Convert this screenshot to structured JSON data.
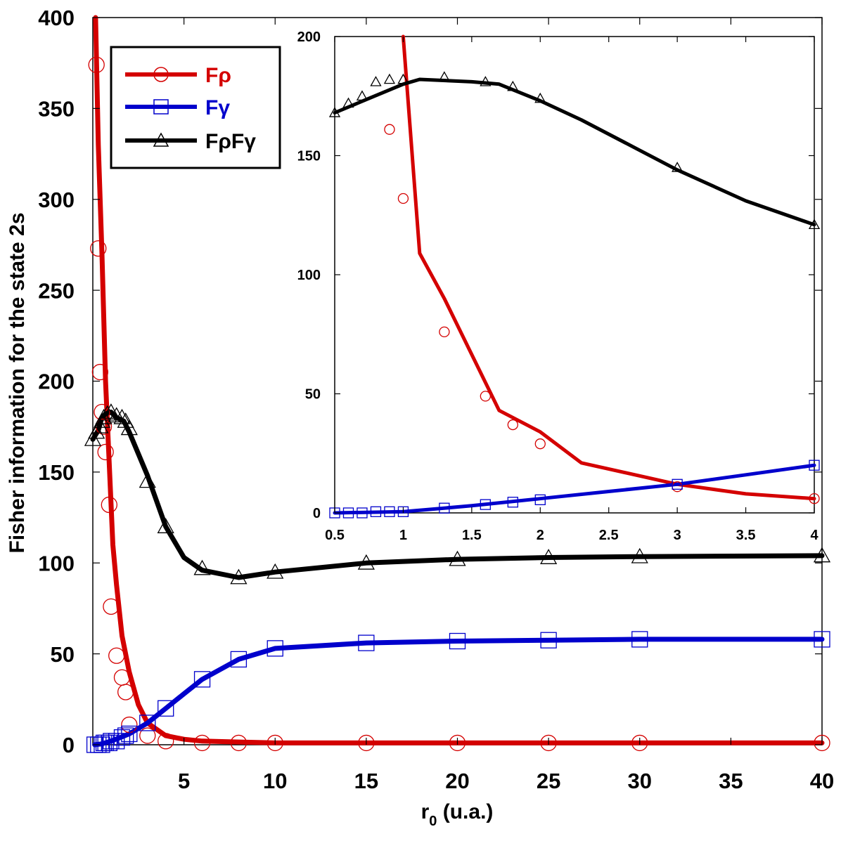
{
  "chart_data": [
    {
      "type": "line",
      "panel": "main",
      "xlabel": "r",
      "xlabel_sub": "0",
      "xlabel_suffix": " (u.a.)",
      "ylabel": "Fisher information for the state 2s",
      "xlim": [
        0,
        40
      ],
      "ylim": [
        0,
        400
      ],
      "xticks": [
        5,
        10,
        15,
        20,
        25,
        30,
        35,
        40
      ],
      "yticks": [
        0,
        50,
        100,
        150,
        200,
        250,
        300,
        350,
        400
      ],
      "grid": false,
      "legend_position": "top-left",
      "series": [
        {
          "name": "Fρ",
          "color": "#d40000",
          "marker": "circle",
          "line": {
            "x": [
              0.15,
              0.3,
              0.5,
              0.7,
              0.9,
              1.1,
              1.3,
              1.6,
              2.0,
              2.5,
              3.0,
              4.0,
              5.0,
              6.0,
              8.0,
              10.0,
              15.0,
              20.0,
              25.0,
              30.0,
              40.0
            ],
            "y": [
              400,
              330,
              270,
              200,
              155,
              110,
              88,
              60,
              40,
              22,
              12,
              5,
              3,
              2,
              1.5,
              1,
              1,
              1,
              1,
              1,
              1
            ]
          },
          "points": {
            "x": [
              0.2,
              0.3,
              0.4,
              0.5,
              0.6,
              0.7,
              0.9,
              1.0,
              1.3,
              1.6,
              1.8,
              2.0,
              3.0,
              4.0,
              6.0,
              8.0,
              10.0,
              15.0,
              20.0,
              25.0,
              30.0,
              40.0
            ],
            "y": [
              374,
              273,
              205,
              183,
              175,
              161,
              132,
              76,
              49,
              37,
              29,
              11,
              5,
              2,
              1,
              1,
              1,
              1,
              1,
              1,
              1,
              1
            ]
          }
        },
        {
          "name": "Fγ",
          "color": "#0000cc",
          "marker": "square",
          "line": {
            "x": [
              0.1,
              0.5,
              1.0,
              1.5,
              2.0,
              3.0,
              4.0,
              5.0,
              6.0,
              8.0,
              10.0,
              15.0,
              20.0,
              25.0,
              30.0,
              40.0
            ],
            "y": [
              0,
              0.5,
              2,
              4,
              6,
              12,
              20,
              28,
              36,
              47,
              53,
              56,
              57,
              57.5,
              58,
              58
            ]
          },
          "points": {
            "x": [
              0.1,
              0.3,
              0.5,
              0.6,
              0.7,
              0.9,
              1.0,
              1.3,
              1.6,
              1.8,
              2.0,
              3.0,
              4.0,
              6.0,
              8.0,
              10.0,
              15.0,
              20.0,
              25.0,
              30.0,
              40.0
            ],
            "y": [
              0,
              0,
              0,
              1,
              1,
              1,
              2,
              2,
              4,
              5,
              6,
              12,
              20,
              36,
              47,
              53,
              56,
              57,
              57.5,
              58,
              58
            ]
          }
        },
        {
          "name": "FρFγ",
          "color": "#000000",
          "marker": "triangle",
          "line": {
            "x": [
              0.0,
              0.3,
              0.5,
              0.7,
              1.0,
              1.3,
              1.7,
              2.0,
              3.0,
              4.0,
              5.0,
              6.0,
              8.0,
              10.0,
              15.0,
              20.0,
              25.0,
              30.0,
              40.0
            ],
            "y": [
              168,
              173,
              180,
              182,
              183,
              180,
              178,
              172,
              148,
              120,
              103,
              96,
              92,
              95,
              100,
              102,
              103,
              103.5,
              104
            ]
          },
          "points": {
            "x": [
              0.0,
              0.2,
              0.4,
              0.5,
              0.6,
              0.8,
              1.0,
              1.3,
              1.6,
              1.8,
              2.0,
              3.0,
              4.0,
              6.0,
              8.0,
              10.0,
              15.0,
              20.0,
              25.0,
              30.0,
              40.0
            ],
            "y": [
              168,
              172,
              175,
              178,
              180,
              182,
              183,
              181,
              180,
              178,
              174,
              145,
              120,
              97,
              92,
              95,
              100,
              102,
              103,
              103.5,
              104
            ]
          }
        }
      ]
    },
    {
      "type": "line",
      "panel": "inset",
      "xlim": [
        0.5,
        4
      ],
      "ylim": [
        0,
        200
      ],
      "xticks": [
        0.5,
        1,
        1.5,
        2,
        2.5,
        3,
        3.5,
        4
      ],
      "xtick_labels": [
        "0.5",
        "1",
        "1.5",
        "2",
        "2.5",
        "3",
        "3.5",
        "4"
      ],
      "yticks": [
        0,
        50,
        100,
        150,
        200
      ],
      "grid": false,
      "series": [
        {
          "name": "Fρ",
          "color": "#d40000",
          "marker": "circle",
          "line": {
            "x": [
              1.0,
              1.12,
              1.3,
              1.7,
              2.0,
              2.3,
              3.0,
              3.5,
              4.0
            ],
            "y": [
              200,
              109,
              90,
              43,
              34,
              21,
              12,
              8,
              6
            ]
          },
          "points": {
            "x": [
              0.9,
              1.0,
              1.3,
              1.6,
              1.8,
              2.0,
              3.0,
              4.0
            ],
            "y": [
              161,
              132,
              76,
              49,
              37,
              29,
              11,
              6
            ]
          }
        },
        {
          "name": "Fγ",
          "color": "#0000cc",
          "marker": "square",
          "line": {
            "x": [
              0.5,
              1.0,
              1.5,
              2.0,
              2.5,
              3.0,
              3.5,
              4.0
            ],
            "y": [
              0,
              0.5,
              3,
              6,
              9,
              12,
              16,
              20
            ]
          },
          "points": {
            "x": [
              0.5,
              0.6,
              0.7,
              0.8,
              0.9,
              1.0,
              1.3,
              1.6,
              1.8,
              2.0,
              3.0,
              4.0
            ],
            "y": [
              0,
              0,
              0,
              0.5,
              0.5,
              0.5,
              2,
              3.5,
              4.5,
              5.5,
              12,
              20
            ]
          }
        },
        {
          "name": "FρFγ",
          "color": "#000000",
          "marker": "triangle",
          "line": {
            "x": [
              0.5,
              0.75,
              1.0,
              1.12,
              1.5,
              1.7,
              2.0,
              2.3,
              2.7,
              3.0,
              3.5,
              4.0
            ],
            "y": [
              168,
              174,
              180,
              182,
              181,
              180,
              173,
              165,
              153,
              144,
              131,
              121
            ]
          },
          "points": {
            "x": [
              0.5,
              0.6,
              0.7,
              0.8,
              0.9,
              1.0,
              1.3,
              1.6,
              1.8,
              2.0,
              3.0,
              4.0
            ],
            "y": [
              168,
              172,
              175,
              181,
              182,
              182,
              183,
              181,
              179,
              174,
              145,
              121
            ]
          }
        }
      ]
    }
  ]
}
